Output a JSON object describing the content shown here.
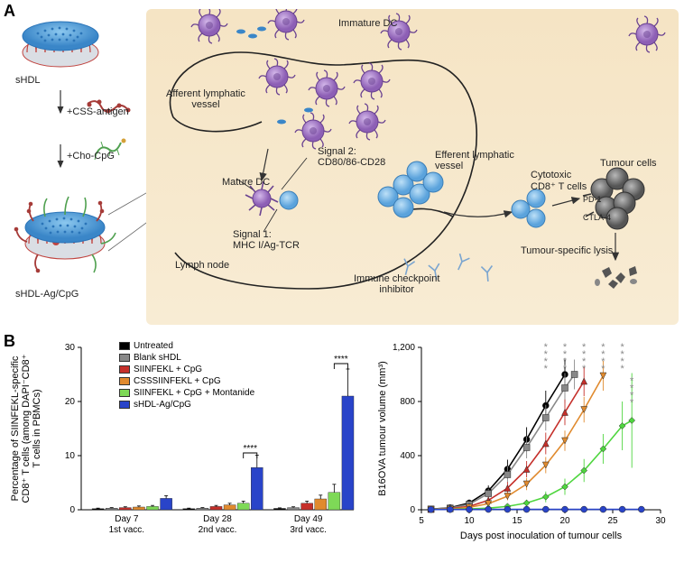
{
  "panel_labels": {
    "A": "A",
    "B": "B"
  },
  "panelA": {
    "left_column": {
      "shdl_label": "sHDL",
      "step1": "+CSS-antigen",
      "step2": "+Cho-CpG",
      "complex_label": "sHDL-Ag/CpG"
    },
    "diagram": {
      "immature_dc": "Immature DC",
      "afferent": "Afferent lymphatic\nvessel",
      "mature_dc": "Mature DC",
      "signal1": "Signal 1:\nMHC I/Ag-TCR",
      "signal2": "Signal 2:\nCD80/86-CD28",
      "lymph_node": "Lymph node",
      "efferent": "Efferent lymphatic\nvessel",
      "cytotoxic": "Cytotoxic\nCD8⁺ T cells",
      "tumour_cells": "Tumour cells",
      "pd1": "PD-1",
      "ctla4": "CTLA-4",
      "ici": "Immune checkpoint\ninhibitor",
      "lysis": "Tumour-specific lysis"
    },
    "colors": {
      "disc_top": "#5aa8e0",
      "disc_rim": "#2a74b8",
      "disc_red": "#c0433f",
      "dc_purple": "#9b6fbf",
      "tcell_blue": "#7bb8e8",
      "tumour_grey": "#6f6f6f",
      "bg": "#f5e4c4",
      "cpg_green": "#4fa04f",
      "antigen_red": "#a63b38"
    }
  },
  "panelB": {
    "bar_chart": {
      "type": "bar",
      "y_title": "Percentage of SIINFEKL-specific\nCD8⁺ T cells (among DAPI⁻CD8⁺\nT cells in PBMCs)",
      "ylim": [
        0,
        30
      ],
      "yticks": [
        0,
        10,
        20,
        30
      ],
      "groups": [
        {
          "label_top": "Day 7",
          "label_bot": "1st vacc."
        },
        {
          "label_top": "Day 28",
          "label_bot": "2nd vacc."
        },
        {
          "label_top": "Day 49",
          "label_bot": "3rd vacc."
        }
      ],
      "series": [
        {
          "name": "Untreated",
          "color": "#000000",
          "values": [
            0.2,
            0.2,
            0.25
          ],
          "err": [
            0.1,
            0.1,
            0.1
          ]
        },
        {
          "name": "Blank sHDL",
          "color": "#888888",
          "values": [
            0.3,
            0.3,
            0.4
          ],
          "err": [
            0.1,
            0.1,
            0.15
          ]
        },
        {
          "name": "SIINFEKL + CpG",
          "color": "#c52f2a",
          "values": [
            0.4,
            0.6,
            1.2
          ],
          "err": [
            0.15,
            0.2,
            0.4
          ]
        },
        {
          "name": "CSSSIINFEKL + CpG",
          "color": "#e08a2e",
          "values": [
            0.5,
            0.9,
            2.0
          ],
          "err": [
            0.2,
            0.3,
            0.7
          ]
        },
        {
          "name": "SIINFEKL + CpG + Montanide",
          "color": "#7ed957",
          "values": [
            0.6,
            1.2,
            3.2
          ],
          "err": [
            0.2,
            0.4,
            1.5
          ]
        },
        {
          "name": "sHDL-Ag/CpG",
          "color": "#2944c9",
          "values": [
            2.1,
            7.8,
            21
          ],
          "err": [
            0.5,
            2.3,
            5.0
          ]
        }
      ],
      "sig": "****",
      "bar_width": 0.13,
      "gap": 0.02
    },
    "line_chart": {
      "type": "line",
      "x_title": "Days post inoculation of tumour cells",
      "y_title": "B16OVA tumour volume (mm³)",
      "xlim": [
        5,
        30
      ],
      "xticks": [
        5,
        10,
        15,
        20,
        25,
        30
      ],
      "ylim": [
        0,
        1200
      ],
      "yticks": [
        0,
        400,
        800,
        1200
      ],
      "series": [
        {
          "name": "Untreated",
          "color": "#000000",
          "marker": "circle",
          "x": [
            6,
            8,
            10,
            12,
            14,
            16,
            18,
            20
          ],
          "y": [
            5,
            15,
            50,
            140,
            300,
            520,
            770,
            1000
          ],
          "err": [
            10,
            15,
            25,
            40,
            70,
            90,
            110,
            120
          ]
        },
        {
          "name": "Blank sHDL",
          "color": "#888888",
          "marker": "square",
          "x": [
            6,
            8,
            10,
            12,
            14,
            16,
            18,
            20,
            21
          ],
          "y": [
            5,
            12,
            40,
            120,
            260,
            460,
            680,
            900,
            1000
          ],
          "err": [
            10,
            15,
            20,
            35,
            60,
            80,
            95,
            110,
            110
          ]
        },
        {
          "name": "SIINFEKL + CpG",
          "color": "#c52f2a",
          "marker": "triangle",
          "x": [
            6,
            8,
            10,
            12,
            14,
            16,
            18,
            20,
            22
          ],
          "y": [
            3,
            8,
            25,
            70,
            160,
            300,
            490,
            720,
            950
          ],
          "err": [
            8,
            10,
            15,
            25,
            45,
            60,
            80,
            95,
            110
          ]
        },
        {
          "name": "CSSSIINFEKL + CpG",
          "color": "#e08a2e",
          "marker": "triangle-down",
          "x": [
            6,
            8,
            10,
            12,
            14,
            16,
            18,
            20,
            22,
            24
          ],
          "y": [
            3,
            5,
            18,
            45,
            100,
            190,
            330,
            510,
            740,
            990
          ],
          "err": [
            6,
            8,
            12,
            18,
            30,
            45,
            60,
            75,
            95,
            110
          ]
        },
        {
          "name": "SIINFEKL + CpG + Montanide",
          "color": "#4fd63f",
          "marker": "diamond",
          "x": [
            6,
            8,
            10,
            12,
            14,
            16,
            18,
            20,
            22,
            24,
            26,
            27
          ],
          "y": [
            2,
            3,
            6,
            12,
            25,
            50,
            95,
            170,
            290,
            450,
            620,
            660
          ],
          "err": [
            4,
            5,
            7,
            10,
            15,
            25,
            40,
            60,
            85,
            110,
            180,
            350
          ]
        },
        {
          "name": "sHDL-Ag/CpG",
          "color": "#2944c9",
          "marker": "circle",
          "x": [
            6,
            8,
            10,
            12,
            14,
            16,
            18,
            20,
            22,
            24,
            26,
            28
          ],
          "y": [
            2,
            2,
            2,
            3,
            3,
            3,
            3,
            3,
            3,
            3,
            3,
            3
          ],
          "err": [
            3,
            3,
            3,
            3,
            3,
            3,
            3,
            3,
            3,
            3,
            3,
            3
          ]
        }
      ],
      "sig_markers": [
        {
          "x": 18,
          "y": 1020,
          "n": 4,
          "color": "#888888"
        },
        {
          "x": 20,
          "y": 1020,
          "n": 4,
          "color": "#888888"
        },
        {
          "x": 22,
          "y": 1020,
          "n": 4,
          "color": "#888888"
        },
        {
          "x": 24,
          "y": 1020,
          "n": 4,
          "color": "#888888"
        },
        {
          "x": 26,
          "y": 1020,
          "n": 4,
          "color": "#888888"
        },
        {
          "x": 27,
          "y": 770,
          "n": 4,
          "color": "#888888"
        }
      ]
    }
  }
}
